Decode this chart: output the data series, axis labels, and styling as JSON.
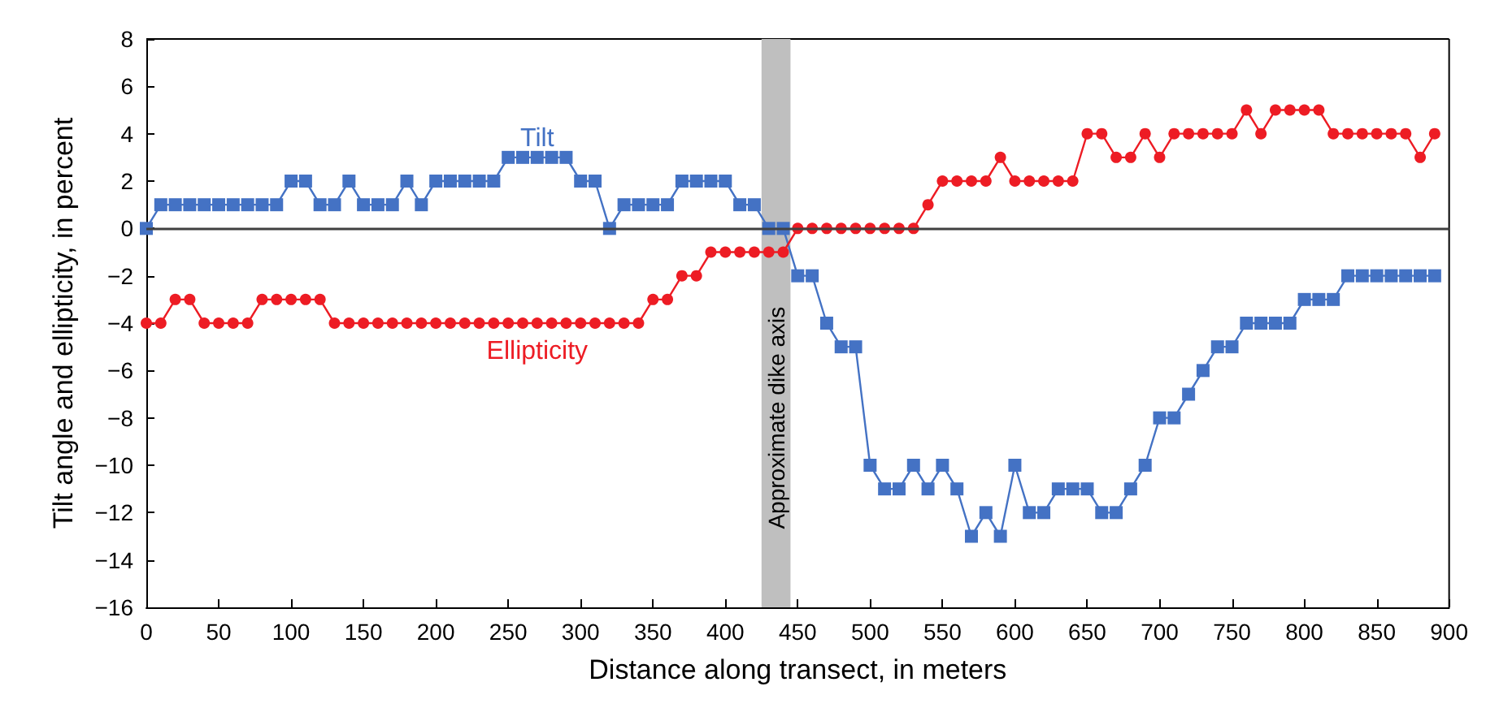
{
  "chart_data": {
    "type": "line",
    "xlabel": "Distance along transect, in meters",
    "ylabel": "Tilt angle and ellipticity, in percent",
    "x": [
      0,
      10,
      20,
      30,
      40,
      50,
      60,
      70,
      80,
      90,
      100,
      110,
      120,
      130,
      140,
      150,
      160,
      170,
      180,
      190,
      200,
      210,
      220,
      230,
      240,
      250,
      260,
      270,
      280,
      290,
      300,
      310,
      320,
      330,
      340,
      350,
      360,
      370,
      380,
      390,
      400,
      410,
      420,
      430,
      440,
      450,
      460,
      470,
      480,
      490,
      500,
      510,
      520,
      530,
      540,
      550,
      560,
      570,
      580,
      590,
      600,
      610,
      620,
      630,
      640,
      650,
      660,
      670,
      680,
      690,
      700,
      710,
      720,
      730,
      740,
      750,
      760,
      770,
      780,
      790,
      800,
      810,
      820,
      830,
      840,
      850,
      860,
      870,
      880,
      890
    ],
    "series": [
      {
        "name": "Tilt",
        "color": "#4472c4",
        "marker": "square",
        "values": [
          0,
          1,
          1,
          1,
          1,
          1,
          1,
          1,
          1,
          1,
          2,
          2,
          1,
          1,
          2,
          1,
          1,
          1,
          2,
          1,
          2,
          2,
          2,
          2,
          2,
          3,
          3,
          3,
          3,
          3,
          2,
          2,
          0,
          1,
          1,
          1,
          1,
          2,
          2,
          2,
          2,
          1,
          1,
          0,
          0,
          -2,
          -2,
          -4,
          -5,
          -5,
          -10,
          -11,
          -11,
          -10,
          -11,
          -10,
          -11,
          -13,
          -12,
          -13,
          -10,
          -12,
          -12,
          -11,
          -11,
          -11,
          -12,
          -12,
          -11,
          -10,
          -8,
          -8,
          -7,
          -6,
          -5,
          -5,
          -4,
          -4,
          -4,
          -4,
          -3,
          -3,
          -3,
          -2,
          -2,
          -2,
          -2,
          -2,
          -2,
          -2
        ]
      },
      {
        "name": "Ellipticity",
        "color": "#ed1c24",
        "marker": "circle",
        "values": [
          -4,
          -4,
          -3,
          -3,
          -4,
          -4,
          -4,
          -4,
          -3,
          -3,
          -3,
          -3,
          -3,
          -4,
          -4,
          -4,
          -4,
          -4,
          -4,
          -4,
          -4,
          -4,
          -4,
          -4,
          -4,
          -4,
          -4,
          -4,
          -4,
          -4,
          -4,
          -4,
          -4,
          -4,
          -4,
          -3,
          -3,
          -2,
          -2,
          -1,
          -1,
          -1,
          -1,
          -1,
          -1,
          0,
          0,
          0,
          0,
          0,
          0,
          0,
          0,
          0,
          1,
          2,
          2,
          2,
          2,
          3,
          2,
          2,
          2,
          2,
          2,
          4,
          4,
          3,
          3,
          4,
          3,
          4,
          4,
          4,
          4,
          4,
          5,
          4,
          5,
          5,
          5,
          5,
          4,
          4,
          4,
          4,
          4,
          4,
          3,
          4
        ]
      }
    ],
    "xlim": [
      0,
      900
    ],
    "xticks": [
      0,
      50,
      100,
      150,
      200,
      250,
      300,
      350,
      400,
      450,
      500,
      550,
      600,
      650,
      700,
      750,
      800,
      850,
      900
    ],
    "ylim": [
      -16,
      8
    ],
    "yticks": [
      -16,
      -14,
      -12,
      -10,
      -8,
      -6,
      -4,
      -2,
      0,
      2,
      4,
      6,
      8
    ],
    "ref_lines": [
      {
        "axis": "y",
        "value": 0,
        "color": "#404040"
      }
    ],
    "bands": [
      {
        "axis": "x",
        "from": 425,
        "to": 445,
        "label": "Approximate dike axis",
        "color": "#bfbfbf"
      }
    ],
    "grid": false,
    "legend": false,
    "line_style": "solid"
  }
}
